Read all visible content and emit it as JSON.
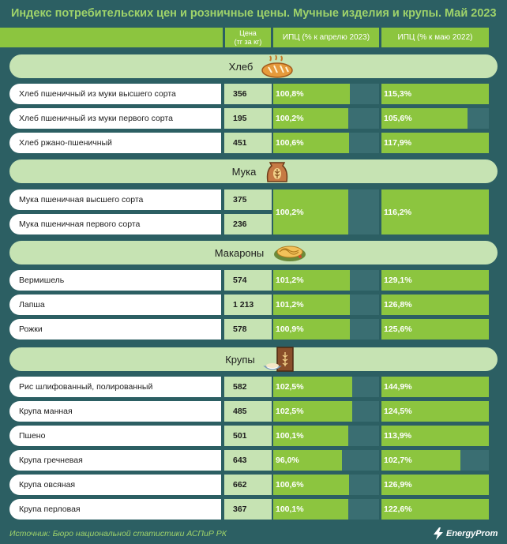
{
  "title": "Индекс потребительских цен и розничные цены. Мучные изделия и крупы. Май 2023",
  "headers": {
    "price_line1": "Цена",
    "price_line2": "(тг за кг)",
    "cpi_apr": "ИПЦ (% к апрелю 2023)",
    "cpi_may": "ИПЦ (% к маю 2022)"
  },
  "colors": {
    "background": "#2c5f63",
    "accent": "#8cc53f",
    "band": "#c6e3b3",
    "title": "#9fd36a"
  },
  "sections": [
    {
      "title": "Хлеб",
      "icon": "bread-icon"
    },
    {
      "title": "Мука",
      "icon": "flour-sack-icon"
    },
    {
      "title": "Макароны",
      "icon": "pasta-icon"
    },
    {
      "title": "Крупы",
      "icon": "grain-bag-icon"
    }
  ],
  "chart_data": {
    "type": "bar",
    "title": "Индекс потребительских цен и розничные цены. Мучные изделия и крупы. Май 2023",
    "columns": [
      "Цена (тг за кг)",
      "ИПЦ (% к апрелю 2023)",
      "ИПЦ (% к маю 2022)"
    ],
    "rows": [
      {
        "group": "Хлеб",
        "name": "Хлеб пшеничный из муки высшего сорта",
        "price": "356",
        "cpi_apr_label": "100,8%",
        "cpi_may_label": "115,3%",
        "cpi_apr": 100.8,
        "cpi_may": 115.3
      },
      {
        "group": "Хлеб",
        "name": "Хлеб пшеничный из муки первого сорта",
        "price": "195",
        "cpi_apr_label": "100,2%",
        "cpi_may_label": "105,6%",
        "cpi_apr": 100.2,
        "cpi_may": 105.6
      },
      {
        "group": "Хлеб",
        "name": "Хлеб ржано-пшеничный",
        "price": "451",
        "cpi_apr_label": "100,6%",
        "cpi_may_label": "117,9%",
        "cpi_apr": 100.6,
        "cpi_may": 117.9
      },
      {
        "group": "Мука",
        "name": "Мука пшеничная высшего сорта",
        "price": "375",
        "cpi_apr_label": "100,2%",
        "cpi_may_label": "116,2%",
        "cpi_apr": 100.2,
        "cpi_may": 116.2
      },
      {
        "group": "Мука",
        "name": "Мука пшеничная первого сорта",
        "price": "236",
        "cpi_apr_label": "",
        "cpi_may_label": "",
        "cpi_apr": 100.2,
        "cpi_may": 116.2
      },
      {
        "group": "Макароны",
        "name": "Вермишель",
        "price": "574",
        "cpi_apr_label": "101,2%",
        "cpi_may_label": "129,1%",
        "cpi_apr": 101.2,
        "cpi_may": 129.1
      },
      {
        "group": "Макароны",
        "name": "Лапша",
        "price": "1 213",
        "cpi_apr_label": "101,2%",
        "cpi_may_label": "126,8%",
        "cpi_apr": 101.2,
        "cpi_may": 126.8
      },
      {
        "group": "Макароны",
        "name": "Рожки",
        "price": "578",
        "cpi_apr_label": "100,9%",
        "cpi_may_label": "125,6%",
        "cpi_apr": 100.9,
        "cpi_may": 125.6
      },
      {
        "group": "Крупы",
        "name": "Рис шлифованный, полированный",
        "price": "582",
        "cpi_apr_label": "102,5%",
        "cpi_may_label": "144,9%",
        "cpi_apr": 102.5,
        "cpi_may": 144.9
      },
      {
        "group": "Крупы",
        "name": "Крупа манная",
        "price": "485",
        "cpi_apr_label": "102,5%",
        "cpi_may_label": "124,5%",
        "cpi_apr": 102.5,
        "cpi_may": 124.5
      },
      {
        "group": "Крупы",
        "name": "Пшено",
        "price": "501",
        "cpi_apr_label": "100,1%",
        "cpi_may_label": "113,9%",
        "cpi_apr": 100.1,
        "cpi_may": 113.9
      },
      {
        "group": "Крупы",
        "name": "Крупа гречневая",
        "price": "643",
        "cpi_apr_label": "96,0%",
        "cpi_may_label": "102,7%",
        "cpi_apr": 96.0,
        "cpi_may": 102.7
      },
      {
        "group": "Крупы",
        "name": "Крупа овсяная",
        "price": "662",
        "cpi_apr_label": "100,6%",
        "cpi_may_label": "126,9%",
        "cpi_apr": 100.6,
        "cpi_may": 126.9
      },
      {
        "group": "Крупы",
        "name": "Крупа перловая",
        "price": "367",
        "cpi_apr_label": "100,1%",
        "cpi_may_label": "122,6%",
        "cpi_apr": 100.1,
        "cpi_may": 122.6
      }
    ],
    "merged": {
      "group": "Мука",
      "cpi_apr_label": "100,2%",
      "cpi_may_label": "116,2%"
    }
  },
  "footer": {
    "source": "Источник: Бюро национальной статистики АСПиР РК",
    "logo_text": "EnergyProm"
  }
}
